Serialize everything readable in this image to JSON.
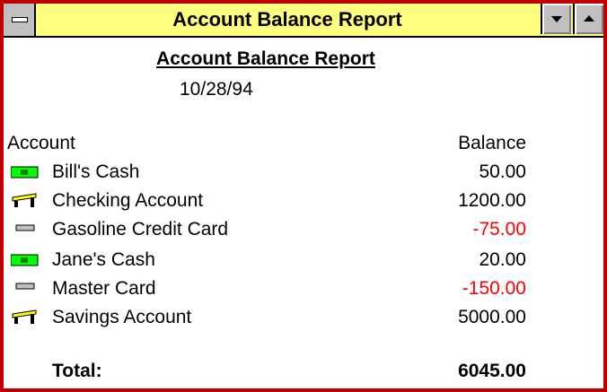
{
  "window": {
    "title": "Account Balance Report"
  },
  "report": {
    "title": "Account Balance Report",
    "date": "10/28/94",
    "columns": [
      "Account",
      "Balance"
    ],
    "rows": [
      [
        "Bill's Cash",
        "50.00"
      ],
      [
        "Checking Account",
        "1200.00"
      ],
      [
        "Gasoline Credit Card",
        "-75.00"
      ],
      [
        "Jane's Cash",
        "20.00"
      ],
      [
        "Master Card",
        "-150.00"
      ],
      [
        "Savings Account",
        "5000.00"
      ]
    ],
    "total": {
      "label": "Total:",
      "value": "6045.00"
    }
  }
}
